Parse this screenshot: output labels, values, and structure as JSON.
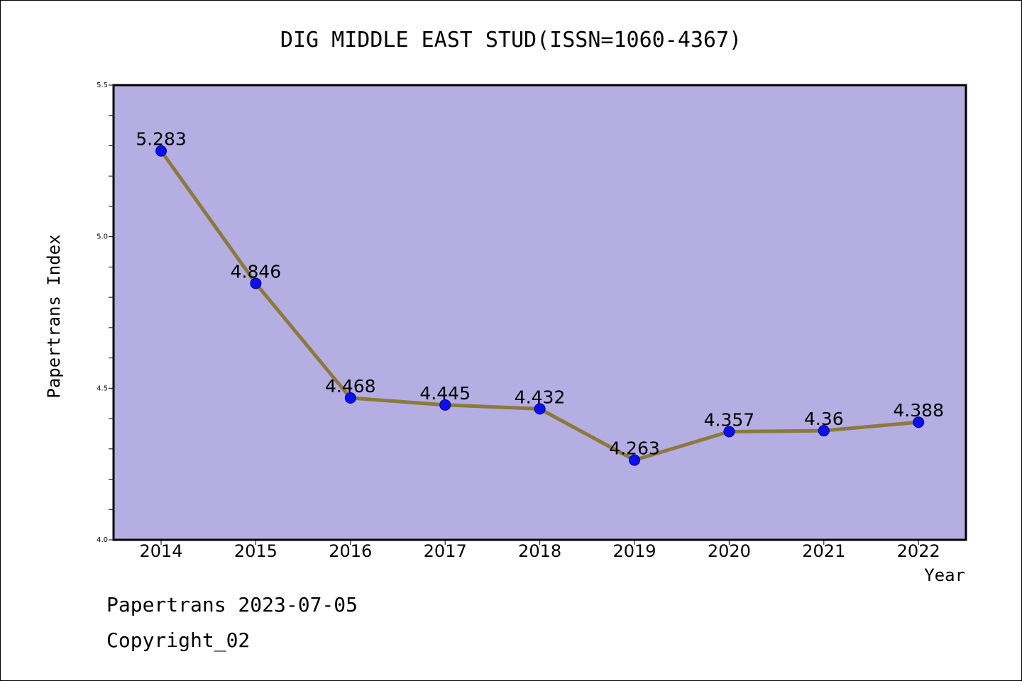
{
  "chart_data": {
    "type": "line",
    "title": "DIG MIDDLE EAST STUD(ISSN=1060-4367)",
    "xlabel": "Year",
    "ylabel": "Papertrans Index",
    "categories": [
      "2014",
      "2015",
      "2016",
      "2017",
      "2018",
      "2019",
      "2020",
      "2021",
      "2022"
    ],
    "series": [
      {
        "values": [
          5.283,
          4.846,
          4.468,
          4.445,
          4.432,
          4.263,
          4.357,
          4.36,
          4.388
        ],
        "labels": [
          "5.283",
          "4.846",
          "4.468",
          "4.445",
          "4.432",
          "4.263",
          "4.357",
          "4.36",
          "4.388"
        ]
      }
    ],
    "ylim": [
      4.0,
      5.5
    ],
    "yticks": [
      "4.0",
      "4.5",
      "5.0",
      "5.5"
    ],
    "grid": false,
    "legend": "none",
    "colors": {
      "plot_background": "#b5aee2",
      "line": "#8b7a3a",
      "marker": "#0a10f0"
    }
  },
  "footer": {
    "line1": "Papertrans 2023-07-05",
    "line2": "Copyright_02"
  }
}
